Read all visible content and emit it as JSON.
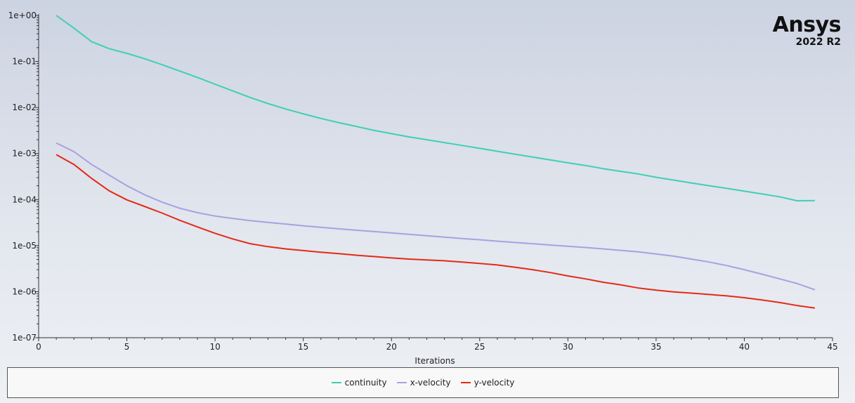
{
  "logo": {
    "name": "Ansys",
    "version": "2022 R2"
  },
  "chart_data": {
    "type": "line",
    "xlabel": "Iterations",
    "ylabel": "",
    "xlim": [
      0,
      45
    ],
    "ylim": [
      1e-07,
      1
    ],
    "yscale": "log",
    "xticks": [
      0,
      5,
      10,
      15,
      20,
      25,
      30,
      35,
      40,
      45
    ],
    "yticks": [
      "1e+00",
      "1e-01",
      "1e-02",
      "1e-03",
      "1e-04",
      "1e-05",
      "1e-06",
      "1e-07"
    ],
    "legend_position": "bottom",
    "grid": false,
    "series": [
      {
        "name": "continuity",
        "color": "#3fcfb5",
        "x": [
          1,
          2,
          3,
          4,
          5,
          6,
          7,
          8,
          9,
          10,
          11,
          12,
          13,
          14,
          15,
          16,
          17,
          18,
          19,
          20,
          21,
          22,
          23,
          24,
          25,
          26,
          27,
          28,
          29,
          30,
          31,
          32,
          33,
          34,
          35,
          36,
          37,
          38,
          39,
          40,
          41,
          42,
          43,
          44
        ],
        "values": [
          1.0,
          0.53,
          0.27,
          0.19,
          0.15,
          0.115,
          0.085,
          0.062,
          0.045,
          0.032,
          0.023,
          0.0165,
          0.0122,
          0.0093,
          0.0073,
          0.0058,
          0.0047,
          0.0039,
          0.0032,
          0.0027,
          0.0023,
          0.002,
          0.00173,
          0.0015,
          0.0013,
          0.00112,
          0.00097,
          0.00084,
          0.00073,
          0.00063,
          0.00055,
          0.00047,
          0.00041,
          0.00036,
          0.000305,
          0.000265,
          0.00023,
          0.0002,
          0.000175,
          0.000153,
          0.000133,
          0.000115,
          9.4e-05,
          9.5e-05
        ]
      },
      {
        "name": "x-velocity",
        "color": "#a9a0e2",
        "x": [
          1,
          2,
          3,
          4,
          5,
          6,
          7,
          8,
          9,
          10,
          11,
          12,
          13,
          14,
          15,
          16,
          17,
          18,
          19,
          20,
          21,
          22,
          23,
          24,
          25,
          26,
          27,
          28,
          29,
          30,
          31,
          32,
          33,
          34,
          35,
          36,
          37,
          38,
          39,
          40,
          41,
          42,
          43,
          44
        ],
        "values": [
          0.0017,
          0.0011,
          0.00058,
          0.00034,
          0.0002,
          0.000128,
          8.8e-05,
          6.5e-05,
          5.2e-05,
          4.4e-05,
          3.9e-05,
          3.5e-05,
          3.2e-05,
          2.95e-05,
          2.7e-05,
          2.5e-05,
          2.32e-05,
          2.16e-05,
          2.02e-05,
          1.89e-05,
          1.76e-05,
          1.64e-05,
          1.53e-05,
          1.43e-05,
          1.34e-05,
          1.25e-05,
          1.17e-05,
          1.1e-05,
          1.03e-05,
          9.7e-06,
          9.1e-06,
          8.5e-06,
          7.9e-06,
          7.3e-06,
          6.6e-06,
          5.9e-06,
          5.1e-06,
          4.4e-06,
          3.7e-06,
          3e-06,
          2.4e-06,
          1.9e-06,
          1.5e-06,
          1.1e-06
        ]
      },
      {
        "name": "y-velocity",
        "color": "#e42a17",
        "x": [
          1,
          2,
          3,
          4,
          5,
          6,
          7,
          8,
          9,
          10,
          11,
          12,
          13,
          14,
          15,
          16,
          17,
          18,
          19,
          20,
          21,
          22,
          23,
          24,
          25,
          26,
          27,
          28,
          29,
          30,
          31,
          32,
          33,
          34,
          35,
          36,
          37,
          38,
          39,
          40,
          41,
          42,
          43,
          44
        ],
        "values": [
          0.00095,
          0.00058,
          0.00029,
          0.000155,
          9.85e-05,
          7.1e-05,
          5.1e-05,
          3.55e-05,
          2.55e-05,
          1.85e-05,
          1.4e-05,
          1.1e-05,
          9.5e-06,
          8.5e-06,
          7.8e-06,
          7.2e-06,
          6.7e-06,
          6.2e-06,
          5.8e-06,
          5.4e-06,
          5.1e-06,
          4.9e-06,
          4.7e-06,
          4.4e-06,
          4.1e-06,
          3.8e-06,
          3.4e-06,
          3e-06,
          2.6e-06,
          2.2e-06,
          1.9e-06,
          1.6e-06,
          1.4e-06,
          1.2e-06,
          1.08e-06,
          9.9e-07,
          9.3e-07,
          8.7e-07,
          8.1e-07,
          7.4e-07,
          6.6e-07,
          5.8e-07,
          5e-07,
          4.4e-07
        ]
      }
    ]
  }
}
